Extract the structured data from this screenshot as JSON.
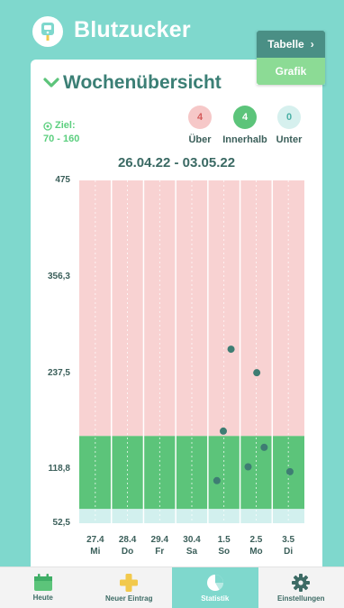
{
  "app": {
    "title": "Blutzucker"
  },
  "view_switch": {
    "table_label": "Tabelle",
    "chart_label": "Grafik"
  },
  "card": {
    "title": "Wochenübersicht",
    "goal_label": "Ziel:",
    "goal_range": "70 - 160",
    "date_range": "26.04.22 - 03.05.22"
  },
  "counters": [
    {
      "count": "4",
      "label": "Über",
      "color": "#f6c8c8",
      "text_color": "#d45a5a"
    },
    {
      "count": "4",
      "label": "Innerhalb",
      "color": "#5cc47a",
      "text_color": "#ffffff"
    },
    {
      "count": "0",
      "label": "Unter",
      "color": "#d6f0ee",
      "text_color": "#4ab0a5"
    }
  ],
  "chart_data": {
    "type": "scatter",
    "y_ticks": [
      "475",
      "356,3",
      "237,5",
      "118,8",
      "52,5"
    ],
    "ylim": [
      52.5,
      475
    ],
    "target_range": [
      70,
      160
    ],
    "categories": [
      {
        "date": "27.4",
        "day": "Mi"
      },
      {
        "date": "28.4",
        "day": "Do"
      },
      {
        "date": "29.4",
        "day": "Fr"
      },
      {
        "date": "30.4",
        "day": "Sa"
      },
      {
        "date": "1.5",
        "day": "So"
      },
      {
        "date": "2.5",
        "day": "Mo"
      },
      {
        "date": "3.5",
        "day": "Di"
      }
    ],
    "points": [
      {
        "day_index": 4,
        "offset": 0.28,
        "value": 105
      },
      {
        "day_index": 4,
        "offset": 0.48,
        "value": 166
      },
      {
        "day_index": 4,
        "offset": 0.72,
        "value": 267
      },
      {
        "day_index": 5,
        "offset": 0.25,
        "value": 122
      },
      {
        "day_index": 5,
        "offset": 0.52,
        "value": 238
      },
      {
        "day_index": 5,
        "offset": 0.75,
        "value": 146
      },
      {
        "day_index": 6,
        "offset": 0.55,
        "value": 116
      }
    ],
    "colors": {
      "above": "#f8d2d2",
      "within": "#5cc47a",
      "below": "#d2f0ee",
      "point": "#3e7d73"
    }
  },
  "tabs": [
    {
      "label": "Heute",
      "icon": "calendar-icon"
    },
    {
      "label": "Neuer Eintrag",
      "icon": "plus-icon"
    },
    {
      "label": "Statistik",
      "icon": "pie-chart-icon"
    },
    {
      "label": "Einstellungen",
      "icon": "gear-icon"
    }
  ]
}
